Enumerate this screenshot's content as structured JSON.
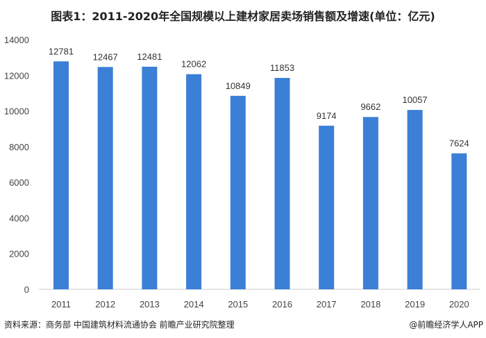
{
  "chart_data": {
    "type": "bar",
    "title": "图表1：2011-2020年全国规模以上建材家居卖场销售额及增速(单位：亿元)",
    "categories": [
      "2011",
      "2012",
      "2013",
      "2014",
      "2015",
      "2016",
      "2017",
      "2018",
      "2019",
      "2020"
    ],
    "values": [
      12781,
      12467,
      12481,
      12062,
      10849,
      11853,
      9174,
      9662,
      10057,
      7624
    ],
    "yticks": [
      0,
      2000,
      4000,
      6000,
      8000,
      10000,
      12000,
      14000
    ],
    "ylim": [
      0,
      14000
    ],
    "xlabel": "",
    "ylabel": "",
    "grid": false,
    "bar_color": "#3b7fd6"
  },
  "footer": {
    "source": "资料来源：商务部 中国建筑材料流通协会 前瞻产业研究院整理",
    "credit": "@前瞻经济学人APP"
  }
}
